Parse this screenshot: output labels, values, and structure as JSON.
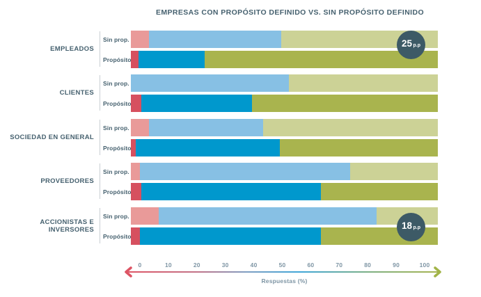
{
  "title": "EMPRESAS CON PROPÓSITO DEFINIDO VS. SIN PROPÓSITO DEFINIDO",
  "colors": {
    "sin": {
      "red": "#e99a99",
      "blue": "#87c0e4",
      "green": "#ccd296"
    },
    "proposito": {
      "red": "#d6505f",
      "blue": "#0098cd",
      "green": "#a9b44e"
    },
    "badge_bg": "#3d5a66",
    "badge_text": "#ffffff",
    "label_text": "#46616f",
    "tick_text": "#7e95a4",
    "divider": "#c9ced3",
    "axis_left_arrow": "#dd5464",
    "axis_right_arrow": "#a2b448"
  },
  "chart_data": {
    "type": "bar",
    "orientation": "horizontal",
    "stacked": true,
    "title": "EMPRESAS CON PROPÓSITO DEFINIDO VS. SIN PROPÓSITO DEFINIDO",
    "xlabel": "Respuestas (%)",
    "unit": "%",
    "xlim": [
      0,
      100
    ],
    "x_ticks": [
      0,
      10,
      20,
      30,
      40,
      50,
      60,
      70,
      80,
      90,
      100
    ],
    "grid": false,
    "legend": false,
    "series_labels": [
      "Sin prop.",
      "Propósito"
    ],
    "segment_order": [
      "red",
      "blue",
      "green"
    ],
    "badge_unit": "p.p",
    "groups": [
      {
        "category": "EMPLEADOS",
        "rows": [
          {
            "label": "Sin prop.",
            "values": [
              6,
              43,
              51
            ]
          },
          {
            "label": "Propósito",
            "values": [
              2.5,
              21.5,
              76
            ]
          }
        ],
        "badge": "25"
      },
      {
        "category": "CLIENTES",
        "rows": [
          {
            "label": "Sin prop.",
            "values": [
              0,
              51.5,
              48.5
            ]
          },
          {
            "label": "Propósito",
            "values": [
              3.5,
              36,
              60.5
            ]
          }
        ],
        "badge": null
      },
      {
        "category": "SOCIEDAD EN GENERAL",
        "rows": [
          {
            "label": "Sin prop.",
            "values": [
              6,
              37,
              57
            ]
          },
          {
            "label": "Propósito",
            "values": [
              1.5,
              47,
              51.5
            ]
          }
        ],
        "badge": null
      },
      {
        "category": "PROVEEDORES",
        "rows": [
          {
            "label": "Sin prop.",
            "values": [
              3,
              68.5,
              28.5
            ]
          },
          {
            "label": "Propósito",
            "values": [
              3.5,
              58.5,
              38
            ]
          }
        ],
        "badge": null
      },
      {
        "category": "ACCIONISTAS E INVERSORES",
        "rows": [
          {
            "label": "Sin prop.",
            "values": [
              9,
              71,
              20
            ]
          },
          {
            "label": "Propósito",
            "values": [
              3,
              59,
              38
            ]
          }
        ],
        "badge": "18"
      }
    ]
  }
}
